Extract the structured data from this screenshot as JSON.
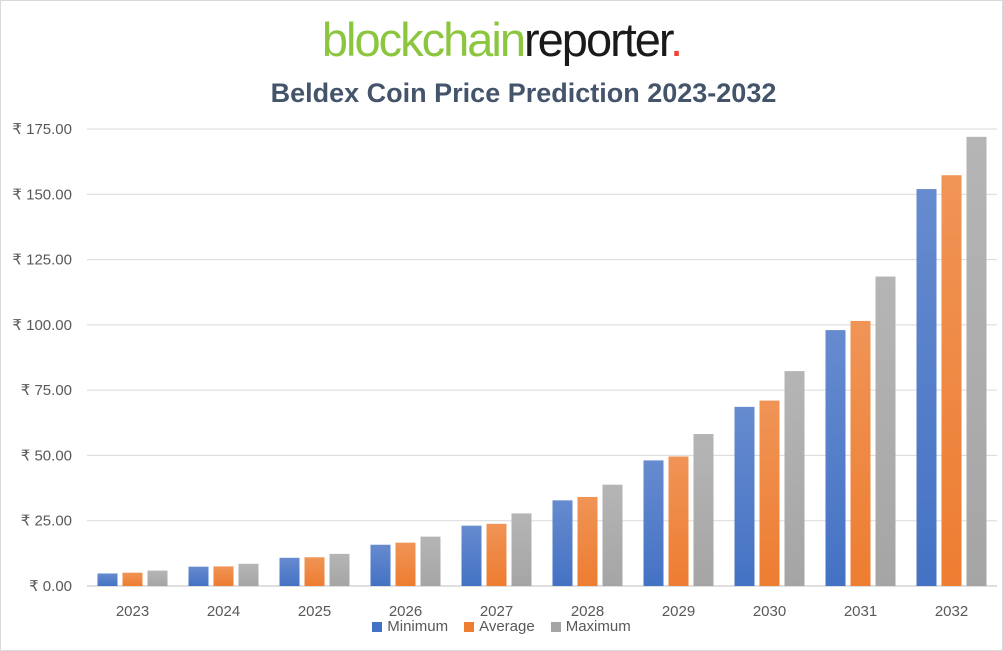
{
  "logo": {
    "part1": "blockchain",
    "part2": "reporter",
    "part3": "."
  },
  "chart_data": {
    "type": "bar",
    "title": "Beldex Coin Price Prediction 2023-2032",
    "categories": [
      "2023",
      "2024",
      "2025",
      "2026",
      "2027",
      "2028",
      "2029",
      "2030",
      "2031",
      "2032"
    ],
    "series": [
      {
        "name": "Minimum",
        "color": "#4472c4",
        "values": [
          4.8,
          7.4,
          10.8,
          15.8,
          23.1,
          32.8,
          48.1,
          68.6,
          98.0,
          152.0
        ]
      },
      {
        "name": "Average",
        "color": "#ed7d31",
        "values": [
          5.1,
          7.5,
          11.0,
          16.6,
          23.8,
          34.1,
          49.6,
          71.0,
          101.5,
          157.3
        ]
      },
      {
        "name": "Maximum",
        "color": "#a5a5a5",
        "values": [
          5.9,
          8.5,
          12.3,
          18.9,
          27.8,
          38.8,
          58.2,
          82.3,
          118.5,
          172.0
        ]
      }
    ],
    "ylim": [
      0,
      175
    ],
    "yticks": [
      0,
      25,
      50,
      75,
      100,
      125,
      150,
      175
    ],
    "ytick_labels": [
      "₹ 0.00",
      "₹ 25.00",
      "₹ 50.00",
      "₹ 75.00",
      "₹ 100.00",
      "₹ 125.00",
      "₹ 150.00",
      "₹ 175.00"
    ],
    "grid": true,
    "legend_position": "bottom"
  }
}
